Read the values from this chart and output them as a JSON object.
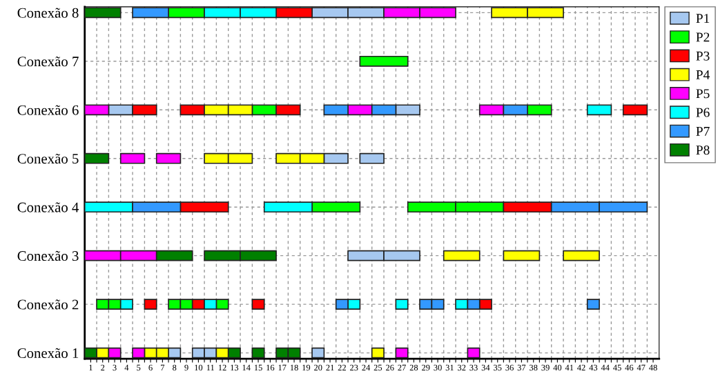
{
  "chart_data": {
    "type": "bar",
    "orientation": "horizontal",
    "categories": [
      "Conexão 8",
      "Conexão 7",
      "Conexão 6",
      "Conexão 5",
      "Conexão 4",
      "Conexão 3",
      "Conexão 2",
      "Conexão 1"
    ],
    "series": [
      {
        "name": "P1",
        "color": "#a6c8f0",
        "base": [
          19,
          null,
          2,
          20,
          null,
          22,
          null,
          7
        ],
        "values": [
          3,
          null,
          2,
          2,
          null,
          3,
          null,
          1
        ]
      },
      {
        "color": "#a6c8f0",
        "base": [
          22,
          null,
          26,
          23,
          null,
          25,
          null,
          9
        ],
        "values": [
          3,
          null,
          2,
          2,
          null,
          3,
          null,
          1
        ]
      },
      {
        "color": "#a6c8f0",
        "base": [
          null,
          null,
          null,
          null,
          null,
          null,
          null,
          10
        ],
        "values": [
          null,
          null,
          null,
          null,
          null,
          null,
          null,
          1
        ]
      },
      {
        "color": "#a6c8f0",
        "base": [
          null,
          null,
          null,
          null,
          null,
          null,
          null,
          19
        ],
        "values": [
          null,
          null,
          null,
          null,
          null,
          null,
          null,
          1
        ]
      },
      {
        "name": "P2",
        "color": "#00ff00",
        "base": [
          7,
          23,
          14,
          null,
          19,
          null,
          1,
          null
        ],
        "values": [
          3,
          4,
          2,
          null,
          4,
          null,
          1,
          null
        ]
      },
      {
        "color": "#00ff00",
        "base": [
          null,
          null,
          37,
          null,
          27,
          null,
          2,
          null
        ],
        "values": [
          null,
          null,
          2,
          null,
          4,
          null,
          1,
          null
        ]
      },
      {
        "color": "#00ff00",
        "base": [
          null,
          null,
          null,
          null,
          31,
          null,
          7,
          null
        ],
        "values": [
          null,
          null,
          null,
          null,
          4,
          null,
          1,
          null
        ]
      },
      {
        "color": "#00ff00",
        "base": [
          null,
          null,
          null,
          null,
          null,
          null,
          8,
          null
        ],
        "values": [
          null,
          null,
          null,
          null,
          null,
          null,
          1,
          null
        ]
      },
      {
        "color": "#00ff00",
        "base": [
          null,
          null,
          null,
          null,
          null,
          null,
          11,
          null
        ],
        "values": [
          null,
          null,
          null,
          null,
          null,
          null,
          1,
          null
        ]
      },
      {
        "name": "P3",
        "color": "#ff0000",
        "base": [
          16,
          null,
          4,
          null,
          8,
          null,
          5,
          null
        ],
        "values": [
          3,
          null,
          2,
          null,
          4,
          null,
          1,
          null
        ]
      },
      {
        "color": "#ff0000",
        "base": [
          null,
          null,
          8,
          null,
          35,
          null,
          9,
          null
        ],
        "values": [
          null,
          null,
          2,
          null,
          4,
          null,
          1,
          null
        ]
      },
      {
        "color": "#ff0000",
        "base": [
          null,
          null,
          16,
          null,
          null,
          null,
          14,
          null
        ],
        "values": [
          null,
          null,
          2,
          null,
          null,
          null,
          1,
          null
        ]
      },
      {
        "color": "#ff0000",
        "base": [
          null,
          null,
          45,
          null,
          null,
          null,
          33,
          null
        ],
        "values": [
          null,
          null,
          2,
          null,
          null,
          null,
          1,
          null
        ]
      },
      {
        "name": "P4",
        "color": "#ffff00",
        "base": [
          34,
          null,
          10,
          10,
          null,
          30,
          null,
          1
        ],
        "values": [
          3,
          null,
          2,
          2,
          null,
          3,
          null,
          1
        ]
      },
      {
        "color": "#ffff00",
        "base": [
          37,
          null,
          12,
          12,
          null,
          35,
          null,
          5
        ],
        "values": [
          3,
          null,
          2,
          2,
          null,
          3,
          null,
          1
        ]
      },
      {
        "color": "#ffff00",
        "base": [
          null,
          null,
          null,
          16,
          null,
          40,
          null,
          6
        ],
        "values": [
          null,
          null,
          null,
          2,
          null,
          3,
          null,
          1
        ]
      },
      {
        "color": "#ffff00",
        "base": [
          null,
          null,
          null,
          18,
          null,
          null,
          null,
          11
        ],
        "values": [
          null,
          null,
          null,
          2,
          null,
          null,
          null,
          1
        ]
      },
      {
        "color": "#ffff00",
        "base": [
          null,
          null,
          null,
          null,
          null,
          null,
          null,
          24
        ],
        "values": [
          null,
          null,
          null,
          null,
          null,
          null,
          null,
          1
        ]
      },
      {
        "name": "P5",
        "color": "#ff00ff",
        "base": [
          25,
          null,
          0,
          3,
          null,
          0,
          null,
          2
        ],
        "values": [
          3,
          null,
          2,
          2,
          null,
          3,
          null,
          1
        ]
      },
      {
        "color": "#ff00ff",
        "base": [
          28,
          null,
          22,
          6,
          null,
          3,
          null,
          4
        ],
        "values": [
          3,
          null,
          2,
          2,
          null,
          3,
          null,
          1
        ]
      },
      {
        "color": "#ff00ff",
        "base": [
          null,
          null,
          33,
          null,
          null,
          null,
          null,
          26
        ],
        "values": [
          null,
          null,
          2,
          null,
          null,
          null,
          null,
          1
        ]
      },
      {
        "color": "#ff00ff",
        "base": [
          null,
          null,
          null,
          null,
          null,
          null,
          null,
          32
        ],
        "values": [
          null,
          null,
          null,
          null,
          null,
          null,
          null,
          1
        ]
      },
      {
        "name": "P6",
        "color": "#00ffff",
        "base": [
          10,
          null,
          42,
          null,
          0,
          null,
          3,
          null
        ],
        "values": [
          3,
          null,
          2,
          null,
          4,
          null,
          1,
          null
        ]
      },
      {
        "color": "#00ffff",
        "base": [
          13,
          null,
          null,
          null,
          15,
          null,
          10,
          null
        ],
        "values": [
          3,
          null,
          null,
          null,
          4,
          null,
          1,
          null
        ]
      },
      {
        "color": "#00ffff",
        "base": [
          null,
          null,
          null,
          null,
          null,
          null,
          22,
          null
        ],
        "values": [
          null,
          null,
          null,
          null,
          null,
          null,
          1,
          null
        ]
      },
      {
        "color": "#00ffff",
        "base": [
          null,
          null,
          null,
          null,
          null,
          null,
          26,
          null
        ],
        "values": [
          null,
          null,
          null,
          null,
          null,
          null,
          1,
          null
        ]
      },
      {
        "color": "#00ffff",
        "base": [
          null,
          null,
          null,
          null,
          null,
          null,
          31,
          null
        ],
        "values": [
          null,
          null,
          null,
          null,
          null,
          null,
          1,
          null
        ]
      },
      {
        "name": "P7",
        "color": "#3399ff",
        "base": [
          4,
          null,
          20,
          null,
          4,
          null,
          21,
          null
        ],
        "values": [
          3,
          null,
          2,
          null,
          4,
          null,
          1,
          null
        ]
      },
      {
        "color": "#3399ff",
        "base": [
          null,
          null,
          24,
          null,
          39,
          null,
          28,
          null
        ],
        "values": [
          null,
          null,
          2,
          null,
          4,
          null,
          1,
          null
        ]
      },
      {
        "color": "#3399ff",
        "base": [
          null,
          null,
          35,
          null,
          43,
          null,
          29,
          null
        ],
        "values": [
          null,
          null,
          2,
          null,
          4,
          null,
          1,
          null
        ]
      },
      {
        "color": "#3399ff",
        "base": [
          null,
          null,
          null,
          null,
          null,
          null,
          32,
          null
        ],
        "values": [
          null,
          null,
          null,
          null,
          null,
          null,
          1,
          null
        ]
      },
      {
        "color": "#3399ff",
        "base": [
          null,
          null,
          null,
          null,
          null,
          null,
          42,
          null
        ],
        "values": [
          null,
          null,
          null,
          null,
          null,
          null,
          1,
          null
        ]
      },
      {
        "name": "P8",
        "color": "#008000",
        "base": [
          0,
          null,
          null,
          0,
          null,
          6,
          null,
          0
        ],
        "values": [
          3,
          null,
          null,
          2,
          null,
          3,
          null,
          1
        ]
      },
      {
        "color": "#008000",
        "base": [
          null,
          null,
          null,
          null,
          null,
          10,
          null,
          12
        ],
        "values": [
          null,
          null,
          null,
          null,
          null,
          3,
          null,
          1
        ]
      },
      {
        "color": "#008000",
        "base": [
          null,
          null,
          null,
          null,
          null,
          13,
          null,
          14
        ],
        "values": [
          null,
          null,
          null,
          null,
          null,
          3,
          null,
          1
        ]
      },
      {
        "color": "#008000",
        "base": [
          null,
          null,
          null,
          null,
          null,
          null,
          null,
          16
        ],
        "values": [
          null,
          null,
          null,
          null,
          null,
          null,
          null,
          1
        ]
      },
      {
        "color": "#008000",
        "base": [
          null,
          null,
          null,
          null,
          null,
          null,
          null,
          17
        ],
        "values": [
          null,
          null,
          null,
          null,
          null,
          null,
          null,
          1
        ]
      }
    ],
    "xlim": [
      0,
      48
    ],
    "xticks": [
      {
        "value": 0.5,
        "label": "1"
      },
      {
        "value": 1.5,
        "label": "2"
      },
      {
        "value": 2.5,
        "label": "3"
      },
      {
        "value": 3.5,
        "label": "4"
      },
      {
        "value": 4.5,
        "label": "5"
      },
      {
        "value": 5.5,
        "label": "6"
      },
      {
        "value": 6.5,
        "label": "7"
      },
      {
        "value": 7.5,
        "label": "8"
      },
      {
        "value": 8.5,
        "label": "9"
      },
      {
        "value": 9.5,
        "label": "10"
      },
      {
        "value": 10.5,
        "label": "11"
      },
      {
        "value": 11.5,
        "label": "12"
      },
      {
        "value": 12.5,
        "label": "13"
      },
      {
        "value": 13.5,
        "label": "14"
      },
      {
        "value": 14.5,
        "label": "15"
      },
      {
        "value": 15.5,
        "label": "16"
      },
      {
        "value": 16.5,
        "label": "17"
      },
      {
        "value": 17.5,
        "label": "18"
      },
      {
        "value": 18.5,
        "label": "19"
      },
      {
        "value": 19.5,
        "label": "20"
      },
      {
        "value": 20.5,
        "label": "21"
      },
      {
        "value": 21.5,
        "label": "22"
      },
      {
        "value": 22.5,
        "label": "23"
      },
      {
        "value": 23.5,
        "label": "24"
      },
      {
        "value": 24.5,
        "label": "25"
      },
      {
        "value": 25.5,
        "label": "26"
      },
      {
        "value": 26.5,
        "label": "27"
      },
      {
        "value": 27.5,
        "label": "28"
      },
      {
        "value": 28.5,
        "label": "29"
      },
      {
        "value": 29.5,
        "label": "30"
      },
      {
        "value": 30.5,
        "label": "31"
      },
      {
        "value": 31.5,
        "label": "32"
      },
      {
        "value": 32.5,
        "label": "33"
      },
      {
        "value": 33.5,
        "label": "34"
      },
      {
        "value": 34.5,
        "label": "35"
      },
      {
        "value": 35.5,
        "label": "36"
      },
      {
        "value": 36.5,
        "label": "37"
      },
      {
        "value": 37.5,
        "label": "38"
      },
      {
        "value": 38.5,
        "label": "39"
      },
      {
        "value": 39.5,
        "label": "40"
      },
      {
        "value": 40.5,
        "label": "41"
      },
      {
        "value": 41.5,
        "label": "42"
      },
      {
        "value": 42.5,
        "label": "43"
      },
      {
        "value": 43.5,
        "label": "44"
      },
      {
        "value": 44.5,
        "label": "45"
      },
      {
        "value": 45.5,
        "label": "46"
      },
      {
        "value": 46.5,
        "label": "47"
      },
      {
        "value": 47.5,
        "label": "48"
      },
      {
        "value": 1,
        "label": null
      },
      {
        "value": 2,
        "label": null
      },
      {
        "value": 3,
        "label": null
      },
      {
        "value": 4,
        "label": null
      },
      {
        "value": 5,
        "label": null
      },
      {
        "value": 6,
        "label": null
      },
      {
        "value": 7,
        "label": null
      },
      {
        "value": 8,
        "label": null
      },
      {
        "value": 9,
        "label": null
      },
      {
        "value": 10,
        "label": null
      },
      {
        "value": 11,
        "label": null
      },
      {
        "value": 12,
        "label": null
      },
      {
        "value": 13,
        "label": null
      },
      {
        "value": 14,
        "label": null
      },
      {
        "value": 15,
        "label": null
      },
      {
        "value": 16,
        "label": null
      },
      {
        "value": 17,
        "label": null
      },
      {
        "value": 18,
        "label": null
      },
      {
        "value": 19,
        "label": null
      },
      {
        "value": 20,
        "label": null
      },
      {
        "value": 21,
        "label": null
      },
      {
        "value": 22,
        "label": null
      },
      {
        "value": 23,
        "label": null
      },
      {
        "value": 24,
        "label": null
      },
      {
        "value": 25,
        "label": null
      },
      {
        "value": 26,
        "label": null
      },
      {
        "value": 27,
        "label": null
      },
      {
        "value": 28,
        "label": null
      },
      {
        "value": 29,
        "label": null
      },
      {
        "value": 30,
        "label": null
      },
      {
        "value": 31,
        "label": null
      },
      {
        "value": 32,
        "label": null
      },
      {
        "value": 33,
        "label": null
      },
      {
        "value": 34,
        "label": null
      },
      {
        "value": 35,
        "label": null
      },
      {
        "value": 36,
        "label": null
      },
      {
        "value": 37,
        "label": null
      },
      {
        "value": 38,
        "label": null
      },
      {
        "value": 39,
        "label": null
      },
      {
        "value": 40,
        "label": null
      },
      {
        "value": 41,
        "label": null
      },
      {
        "value": 42,
        "label": null
      },
      {
        "value": 43,
        "label": null
      },
      {
        "value": 44,
        "label": null
      },
      {
        "value": 45,
        "label": null
      },
      {
        "value": 46,
        "label": null
      },
      {
        "value": 47,
        "label": null
      }
    ],
    "grid": true,
    "legend": "top right"
  }
}
